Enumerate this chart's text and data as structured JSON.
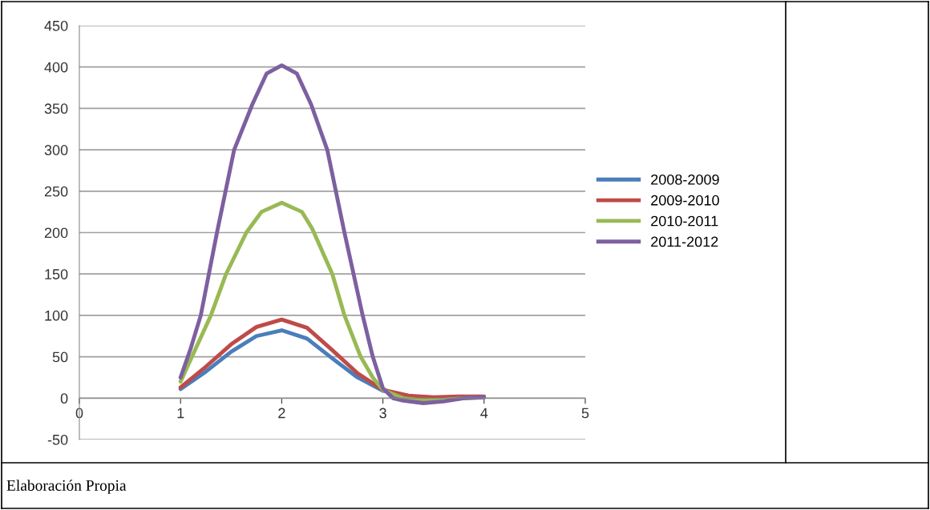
{
  "chart_data": {
    "type": "line",
    "series": [
      {
        "name": "2008-2009",
        "color": "#4a7ebb",
        "x": [
          1,
          1.25,
          1.5,
          1.75,
          2,
          2.25,
          2.5,
          2.75,
          3,
          3.25
        ],
        "values": [
          11,
          32,
          56,
          75,
          82,
          72,
          48,
          25,
          9,
          3
        ]
      },
      {
        "name": "2009-2010",
        "color": "#be4b48",
        "x": [
          1,
          1.25,
          1.5,
          1.75,
          2,
          2.25,
          2.5,
          2.75,
          3,
          3.25,
          3.5,
          3.75,
          4
        ],
        "values": [
          13,
          38,
          65,
          86,
          95,
          85,
          58,
          30,
          10,
          3,
          1,
          2,
          2
        ]
      },
      {
        "name": "2010-2011",
        "color": "#98b954",
        "x": [
          1,
          1.15,
          1.3,
          1.45,
          1.65,
          1.8,
          2,
          2.2,
          2.3,
          2.5,
          2.62,
          2.78,
          2.9,
          3,
          3.2,
          3.4,
          3.6,
          3.8,
          4
        ],
        "values": [
          20,
          60,
          100,
          150,
          200,
          225,
          236,
          225,
          205,
          150,
          100,
          50,
          25,
          10,
          0,
          -3,
          -2,
          0,
          1
        ]
      },
      {
        "name": "2011-2012",
        "color": "#7d60a0",
        "x": [
          1,
          1.1,
          1.2,
          1.36,
          1.53,
          1.71,
          1.85,
          2,
          2.15,
          2.29,
          2.45,
          2.62,
          2.8,
          2.9,
          3,
          3.1,
          3.2,
          3.4,
          3.6,
          3.8,
          4
        ],
        "values": [
          25,
          60,
          100,
          200,
          300,
          355,
          392,
          402,
          392,
          355,
          300,
          200,
          100,
          50,
          12,
          0,
          -3,
          -6,
          -4,
          0,
          1
        ]
      }
    ],
    "xlim": [
      0,
      5
    ],
    "xticks": [
      0,
      1,
      2,
      3,
      4,
      5
    ],
    "ylim": [
      -50,
      450
    ],
    "yticks": [
      -50,
      0,
      50,
      100,
      150,
      200,
      250,
      300,
      350,
      400,
      450
    ],
    "grid": "y",
    "legend": "right",
    "marker": "none",
    "line_style": "solid",
    "annotations": [
      "Elaboración Propia"
    ]
  }
}
